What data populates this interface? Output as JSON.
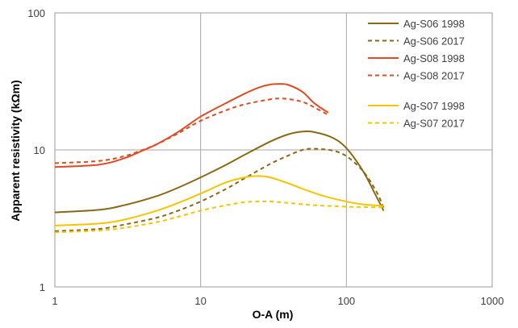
{
  "chart_data": {
    "type": "line",
    "title": "",
    "xlabel": "O-A (m)",
    "ylabel": "Apparent resistivity (kΩm)",
    "x_scale": "log",
    "y_scale": "log",
    "xlim": [
      1,
      1000
    ],
    "ylim": [
      1,
      100
    ],
    "x_ticks": [
      1,
      10,
      100,
      1000
    ],
    "x_tick_labels": [
      "1",
      "10",
      "100",
      "1000"
    ],
    "y_ticks": [
      1,
      10,
      100
    ],
    "y_tick_labels": [
      "1",
      "10",
      "100"
    ],
    "grid": true,
    "legend_position": "top-right",
    "series": [
      {
        "name": "Ag-S06 1998",
        "color": "#8b6914",
        "dash": "solid",
        "points": [
          [
            1,
            3.5
          ],
          [
            2,
            3.65
          ],
          [
            3,
            3.95
          ],
          [
            5,
            4.6
          ],
          [
            7,
            5.3
          ],
          [
            10,
            6.3
          ],
          [
            15,
            7.8
          ],
          [
            20,
            9.2
          ],
          [
            30,
            11.5
          ],
          [
            40,
            13.0
          ],
          [
            50,
            13.6
          ],
          [
            60,
            13.5
          ],
          [
            80,
            12.3
          ],
          [
            100,
            10.3
          ],
          [
            130,
            7.0
          ],
          [
            160,
            4.6
          ],
          [
            180,
            3.6
          ]
        ]
      },
      {
        "name": "Ag-S06 2017",
        "color": "#8b6914",
        "dash": "dashed",
        "points": [
          [
            1,
            2.55
          ],
          [
            2,
            2.65
          ],
          [
            3,
            2.85
          ],
          [
            5,
            3.2
          ],
          [
            7,
            3.6
          ],
          [
            10,
            4.2
          ],
          [
            15,
            5.2
          ],
          [
            20,
            6.2
          ],
          [
            30,
            7.9
          ],
          [
            40,
            9.1
          ],
          [
            50,
            10.0
          ],
          [
            60,
            10.2
          ],
          [
            80,
            9.9
          ],
          [
            100,
            9.0
          ],
          [
            130,
            7.0
          ],
          [
            160,
            5.0
          ],
          [
            180,
            3.8
          ]
        ]
      },
      {
        "name": "Ag-S08 1998",
        "color": "#e04b25",
        "dash": "solid",
        "points": [
          [
            1,
            7.5
          ],
          [
            2,
            7.8
          ],
          [
            3,
            8.7
          ],
          [
            4,
            9.9
          ],
          [
            5,
            11.0
          ],
          [
            7,
            13.5
          ],
          [
            10,
            17.5
          ],
          [
            15,
            22.0
          ],
          [
            20,
            25.7
          ],
          [
            25,
            28.5
          ],
          [
            30,
            30.0
          ],
          [
            35,
            30.3
          ],
          [
            40,
            29.8
          ],
          [
            50,
            26.5
          ],
          [
            60,
            22.0
          ],
          [
            75,
            18.7
          ]
        ]
      },
      {
        "name": "Ag-S08 2017",
        "color": "#e04b25",
        "dash": "dashed",
        "points": [
          [
            1,
            8.0
          ],
          [
            2,
            8.3
          ],
          [
            3,
            9.0
          ],
          [
            4,
            10.0
          ],
          [
            5,
            11.0
          ],
          [
            7,
            13.2
          ],
          [
            10,
            16.3
          ],
          [
            15,
            19.5
          ],
          [
            20,
            21.5
          ],
          [
            30,
            23.4
          ],
          [
            35,
            23.7
          ],
          [
            40,
            23.5
          ],
          [
            50,
            22.4
          ],
          [
            60,
            20.5
          ],
          [
            75,
            18.0
          ]
        ]
      },
      {
        "name": "Ag-S07 1998",
        "color": "#f5c400",
        "dash": "solid",
        "points": [
          [
            1,
            2.8
          ],
          [
            2,
            2.9
          ],
          [
            3,
            3.1
          ],
          [
            5,
            3.6
          ],
          [
            7,
            4.1
          ],
          [
            10,
            4.8
          ],
          [
            15,
            5.8
          ],
          [
            20,
            6.3
          ],
          [
            25,
            6.45
          ],
          [
            30,
            6.3
          ],
          [
            40,
            5.7
          ],
          [
            50,
            5.2
          ],
          [
            70,
            4.6
          ],
          [
            100,
            4.2
          ],
          [
            130,
            4.0
          ],
          [
            180,
            3.9
          ]
        ]
      },
      {
        "name": "Ag-S07 2017",
        "color": "#f5c400",
        "dash": "dashed",
        "points": [
          [
            1,
            2.5
          ],
          [
            2,
            2.58
          ],
          [
            3,
            2.7
          ],
          [
            5,
            2.97
          ],
          [
            7,
            3.25
          ],
          [
            10,
            3.6
          ],
          [
            15,
            3.95
          ],
          [
            20,
            4.15
          ],
          [
            25,
            4.2
          ],
          [
            30,
            4.2
          ],
          [
            40,
            4.1
          ],
          [
            60,
            3.95
          ],
          [
            100,
            3.85
          ],
          [
            180,
            3.8
          ]
        ]
      }
    ]
  }
}
